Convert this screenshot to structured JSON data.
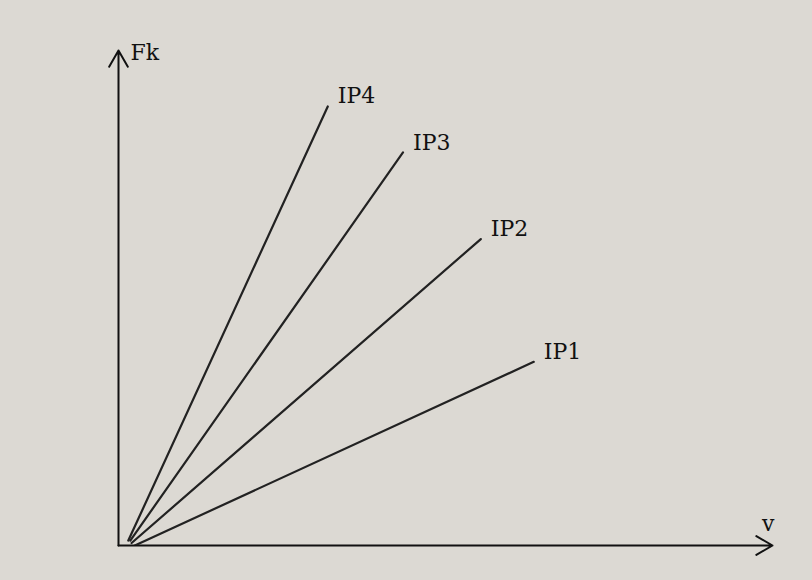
{
  "chart_data": {
    "type": "line",
    "x_label": "v",
    "y_label": "Fk",
    "xlim": [
      0,
      100
    ],
    "ylim": [
      0,
      100
    ],
    "xticks": [],
    "yticks": [],
    "tick_labels": false,
    "grid": false,
    "series": [
      {
        "name": "IP4",
        "color": "#222222",
        "x": [
          1.5,
          32
        ],
        "values": [
          1,
          88.7
        ]
      },
      {
        "name": "IP3",
        "color": "#222222",
        "x": [
          1.8,
          43.5
        ],
        "values": [
          1,
          79.4
        ]
      },
      {
        "name": "IP2",
        "color": "#222222",
        "x": [
          2,
          55.4
        ],
        "values": [
          0.5,
          61.9
        ]
      },
      {
        "name": "IP1",
        "color": "#222222",
        "x": [
          2.5,
          63.5
        ],
        "values": [
          0,
          37.1
        ]
      }
    ]
  }
}
